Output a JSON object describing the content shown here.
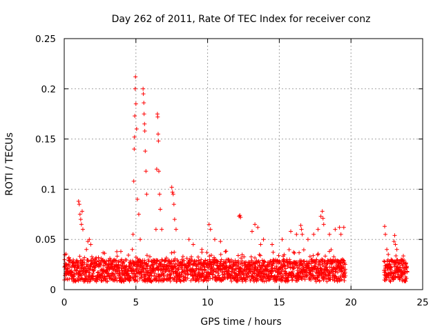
{
  "chart_data": {
    "type": "scatter",
    "title": "Day 262 of 2011, Rate Of TEC Index for receiver conz",
    "xlabel": "GPS time / hours",
    "ylabel": "ROTI / TECUs",
    "xlim": [
      0,
      25
    ],
    "ylim": [
      0,
      0.25
    ],
    "x_ticks": [
      "0",
      "5",
      "10",
      "15",
      "20",
      "25"
    ],
    "y_ticks": [
      "0",
      "0.05",
      "0.1",
      "0.15",
      "0.2",
      "0.25"
    ],
    "grid": true,
    "marker": "+",
    "marker_color": "#ff0000",
    "data_band": {
      "coverage": [
        [
          0.0,
          19.6
        ],
        [
          22.3,
          23.9
        ]
      ],
      "baseline_range": [
        0.008,
        0.03
      ],
      "note_gap": [
        19.6,
        22.3
      ]
    },
    "series": [
      {
        "x": [
          1.0,
          1.05,
          1.1,
          1.15,
          1.2,
          1.25,
          1.3,
          1.55,
          1.65,
          1.75,
          1.85,
          3.95,
          4.0,
          4.75,
          4.8,
          4.85,
          4.88,
          4.9,
          4.92,
          4.95,
          4.97,
          5.0,
          5.05,
          5.1,
          5.2,
          5.3,
          5.5,
          5.52,
          5.55,
          5.57,
          5.6,
          5.62,
          5.65,
          5.7,
          5.75,
          6.4,
          6.45,
          6.5,
          6.52,
          6.55,
          6.57,
          6.6,
          6.65,
          6.7,
          6.8,
          7.5,
          7.55,
          7.6,
          7.65,
          7.7,
          7.8,
          8.7,
          9.0,
          9.6,
          10.1,
          10.2,
          10.5,
          10.9,
          12.2,
          12.25,
          12.3,
          13.1,
          13.3,
          13.5,
          13.7,
          13.9,
          14.5,
          15.2,
          15.8,
          16.2,
          16.5,
          16.55,
          16.6,
          17.0,
          17.4,
          17.7,
          17.9,
          18.0,
          18.05,
          18.1,
          18.5,
          18.9,
          19.2,
          19.3,
          19.5,
          22.35,
          22.4,
          22.5,
          22.6,
          22.8,
          23.0,
          23.05,
          23.1,
          23.2,
          23.5,
          23.8
        ],
        "y": [
          0.088,
          0.085,
          0.075,
          0.07,
          0.065,
          0.078,
          0.06,
          0.04,
          0.048,
          0.05,
          0.045,
          0.038,
          0.03,
          0.04,
          0.055,
          0.108,
          0.14,
          0.152,
          0.173,
          0.2,
          0.212,
          0.185,
          0.16,
          0.09,
          0.075,
          0.05,
          0.2,
          0.195,
          0.186,
          0.175,
          0.165,
          0.158,
          0.138,
          0.118,
          0.095,
          0.06,
          0.12,
          0.175,
          0.172,
          0.155,
          0.148,
          0.118,
          0.095,
          0.08,
          0.06,
          0.102,
          0.097,
          0.095,
          0.085,
          0.07,
          0.06,
          0.05,
          0.045,
          0.04,
          0.065,
          0.06,
          0.05,
          0.048,
          0.073,
          0.074,
          0.072,
          0.058,
          0.065,
          0.062,
          0.045,
          0.05,
          0.045,
          0.05,
          0.058,
          0.055,
          0.064,
          0.06,
          0.055,
          0.05,
          0.055,
          0.06,
          0.073,
          0.078,
          0.071,
          0.065,
          0.055,
          0.06,
          0.062,
          0.055,
          0.062,
          0.063,
          0.055,
          0.04,
          0.035,
          0.03,
          0.048,
          0.054,
          0.045,
          0.04,
          0.03,
          0.02
        ]
      }
    ]
  }
}
